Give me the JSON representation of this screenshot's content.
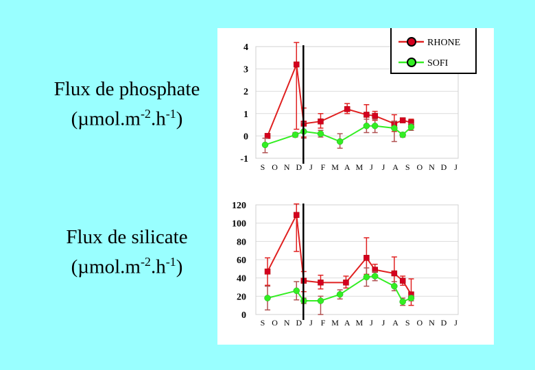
{
  "labels": {
    "phosphate": {
      "line1": "Flux de phosphate",
      "line2_prefix": "(µmol.m",
      "line2_sup1": "-2",
      "line2_mid": ".h",
      "line2_sup2": "-1",
      "line2_suffix": ")"
    },
    "silicate": {
      "line1": "Flux de silicate",
      "line2_prefix": "(µmol.m",
      "line2_sup1": "-2",
      "line2_mid": ".h",
      "line2_sup2": "-1",
      "line2_suffix": ")"
    }
  },
  "colors": {
    "rhone": "#e02020",
    "sofi": "#33ee22",
    "rhone_marker": "#d4001f",
    "sofi_marker": "#33ee22",
    "error_bar": "#b05050",
    "background": "#99ffff",
    "divider": "#000000"
  },
  "chart_data": [
    {
      "type": "line",
      "title": "",
      "xlabel": "",
      "ylabel": "",
      "x_ticks": [
        "S",
        "O",
        "N",
        "D",
        "J",
        "F",
        "M",
        "A",
        "M",
        "J",
        "J",
        "A",
        "S",
        "O",
        "N",
        "D",
        "J"
      ],
      "ylim": [
        -1,
        4
      ],
      "y_ticks": [
        -1,
        0,
        1,
        2,
        3,
        4
      ],
      "divider_x": 3.2,
      "legend": {
        "position": "top-right",
        "entries": [
          "RHONE",
          "SOFI"
        ]
      },
      "series": [
        {
          "name": "RHONE",
          "color_key": "rhone",
          "x": [
            0.4,
            2.8,
            3.4,
            4.8,
            7.0,
            8.6,
            9.3,
            10.9,
            11.6,
            12.3
          ],
          "y": [
            0.0,
            3.2,
            0.55,
            0.65,
            1.2,
            0.95,
            0.9,
            0.55,
            0.7,
            0.6
          ],
          "err_hi": [
            0.0,
            1.0,
            0.7,
            0.35,
            0.25,
            0.45,
            0.2,
            0.4,
            0.1,
            0.15
          ],
          "err_lo": [
            0.0,
            2.9,
            0.6,
            0.3,
            0.2,
            0.45,
            0.2,
            0.35,
            0.1,
            0.15
          ]
        },
        {
          "name": "SOFI",
          "color_key": "sofi",
          "x": [
            0.2,
            2.7,
            3.4,
            4.8,
            6.4,
            8.6,
            9.3,
            10.9,
            11.6,
            12.3
          ],
          "y": [
            -0.4,
            0.05,
            0.2,
            0.1,
            -0.25,
            0.45,
            0.45,
            0.35,
            0.05,
            0.4
          ],
          "err_hi": [
            0.3,
            0.1,
            0.4,
            0.15,
            0.35,
            0.3,
            0.3,
            0.3,
            0.1,
            0.15
          ],
          "err_lo": [
            0.35,
            0.1,
            0.3,
            0.15,
            0.3,
            0.3,
            0.3,
            0.6,
            0.1,
            0.15
          ]
        }
      ]
    },
    {
      "type": "line",
      "title": "",
      "xlabel": "",
      "ylabel": "",
      "x_ticks": [
        "S",
        "O",
        "N",
        "D",
        "J",
        "F",
        "M",
        "A",
        "M",
        "J",
        "J",
        "A",
        "S",
        "O",
        "N",
        "D",
        "J"
      ],
      "ylim": [
        0,
        120
      ],
      "y_ticks": [
        0,
        20,
        40,
        60,
        80,
        100,
        120
      ],
      "divider_x": 3.2,
      "series": [
        {
          "name": "RHONE",
          "color_key": "rhone",
          "x": [
            0.4,
            2.8,
            3.4,
            4.8,
            6.9,
            8.6,
            9.3,
            10.9,
            11.6,
            12.3
          ],
          "y": [
            47,
            109,
            37,
            35,
            35,
            62,
            49,
            45,
            37,
            22
          ],
          "err_hi": [
            15,
            12,
            10,
            8,
            7,
            22,
            6,
            18,
            5,
            17
          ],
          "err_lo": [
            15,
            40,
            12,
            7,
            6,
            18,
            6,
            14,
            5,
            12
          ]
        },
        {
          "name": "SOFI",
          "color_key": "sofi",
          "x": [
            0.4,
            2.8,
            3.4,
            4.8,
            6.4,
            8.6,
            9.3,
            10.9,
            11.6,
            12.3
          ],
          "y": [
            18,
            26,
            15,
            15,
            22,
            41,
            42,
            31,
            14,
            18
          ],
          "err_hi": [
            13,
            10,
            3,
            5,
            5,
            10,
            5,
            5,
            4,
            3
          ],
          "err_lo": [
            13,
            10,
            3,
            15,
            5,
            10,
            5,
            5,
            4,
            3
          ]
        }
      ]
    }
  ]
}
